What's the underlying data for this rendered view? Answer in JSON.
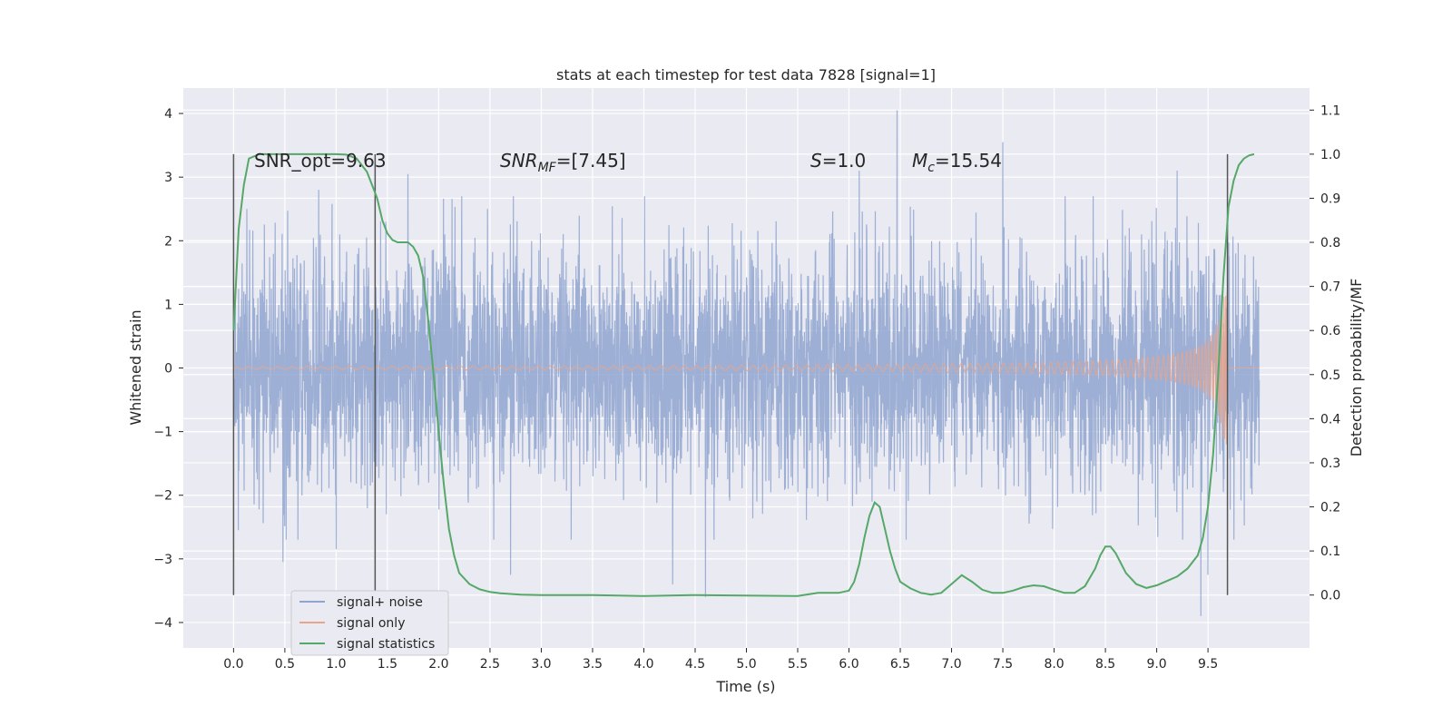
{
  "chart_data": {
    "type": "line",
    "title": "stats at each timestep for test data 7828 [signal=1]",
    "xlabel": "Time (s)",
    "ylabel": "Whitened strain",
    "y2label": "Detection probability/MF",
    "xlim": [
      -0.49,
      10.49
    ],
    "ylim": [
      -4.4,
      4.4
    ],
    "y2lim": [
      -0.12,
      1.15
    ],
    "xticks": [
      "0.0",
      "0.5",
      "1.0",
      "1.5",
      "2.0",
      "2.5",
      "3.0",
      "3.5",
      "4.0",
      "4.5",
      "5.0",
      "5.5",
      "6.0",
      "6.5",
      "7.0",
      "7.5",
      "8.0",
      "8.5",
      "9.0",
      "9.5"
    ],
    "yticks": [
      "4",
      "3",
      "2",
      "1",
      "0",
      "−1",
      "−2",
      "−3",
      "−4"
    ],
    "y2ticks": [
      "1.1",
      "1.0",
      "0.9",
      "0.8",
      "0.7",
      "0.6",
      "0.5",
      "0.4",
      "0.3",
      "0.2",
      "0.1",
      "0.0"
    ],
    "grid": true,
    "legend_position": "lower-left",
    "annotations": {
      "snr_opt": "SNR_opt=9.63",
      "snr_mf_main": "SNR",
      "snr_mf_sub": "MF",
      "snr_mf_value": "=[7.45]",
      "s_main": "S",
      "s_value": "=1.0",
      "mc_main": "M",
      "mc_sub": "c",
      "mc_value": "=15.54"
    },
    "vertical_lines_x": [
      0.0,
      1.38,
      9.69
    ],
    "series": [
      {
        "name": "signal+ noise",
        "color": "#8fa4cf",
        "x_range": [
          0.0,
          10.0
        ],
        "noise_std": 0.9,
        "spikes": [
          [
            0.13,
            2.5
          ],
          [
            0.48,
            -3.05
          ],
          [
            0.83,
            2.8
          ],
          [
            1.0,
            -2.85
          ],
          [
            1.7,
            3.05
          ],
          [
            2.7,
            -3.25
          ],
          [
            4.28,
            -3.4
          ],
          [
            4.6,
            -3.6
          ],
          [
            6.47,
            4.05
          ],
          [
            6.1,
            3.1
          ],
          [
            7.5,
            3.55
          ],
          [
            9.43,
            -3.9
          ],
          [
            9.5,
            -3.25
          ],
          [
            9.2,
            3.1
          ]
        ]
      },
      {
        "name": "signal only",
        "color": "#e8a58c",
        "chirp_end": 9.69,
        "peak_amplitude": 1.2
      },
      {
        "name": "signal statistics",
        "color": "#55a868",
        "axis": "right",
        "x": [
          0.0,
          0.05,
          0.1,
          0.15,
          0.25,
          0.4,
          0.6,
          0.8,
          1.0,
          1.1,
          1.2,
          1.3,
          1.35,
          1.4,
          1.45,
          1.5,
          1.55,
          1.6,
          1.65,
          1.7,
          1.75,
          1.8,
          1.85,
          1.9,
          1.95,
          2.0,
          2.05,
          2.1,
          2.15,
          2.2,
          2.3,
          2.4,
          2.5,
          2.6,
          2.8,
          3.0,
          3.5,
          4.0,
          4.5,
          5.0,
          5.5,
          5.7,
          5.9,
          6.0,
          6.05,
          6.1,
          6.15,
          6.2,
          6.25,
          6.3,
          6.35,
          6.4,
          6.45,
          6.5,
          6.6,
          6.7,
          6.8,
          6.9,
          7.0,
          7.1,
          7.2,
          7.3,
          7.4,
          7.5,
          7.6,
          7.7,
          7.8,
          7.9,
          8.0,
          8.1,
          8.2,
          8.3,
          8.4,
          8.45,
          8.5,
          8.55,
          8.6,
          8.7,
          8.8,
          8.9,
          9.0,
          9.1,
          9.2,
          9.3,
          9.4,
          9.45,
          9.5,
          9.55,
          9.6,
          9.65,
          9.7,
          9.75,
          9.8,
          9.85,
          9.9,
          9.95
        ],
        "y": [
          0.6,
          0.83,
          0.93,
          0.99,
          1.0,
          1.0,
          1.0,
          1.0,
          1.0,
          0.999,
          0.99,
          0.96,
          0.93,
          0.9,
          0.85,
          0.82,
          0.805,
          0.8,
          0.8,
          0.8,
          0.79,
          0.77,
          0.72,
          0.62,
          0.5,
          0.37,
          0.25,
          0.15,
          0.09,
          0.05,
          0.025,
          0.013,
          0.007,
          0.004,
          0.001,
          0.0,
          0.0,
          -0.002,
          0.0,
          -0.001,
          -0.002,
          0.005,
          0.005,
          0.01,
          0.03,
          0.07,
          0.13,
          0.18,
          0.21,
          0.2,
          0.15,
          0.1,
          0.06,
          0.03,
          0.015,
          0.005,
          0.001,
          0.005,
          0.025,
          0.045,
          0.03,
          0.012,
          0.005,
          0.005,
          0.01,
          0.018,
          0.022,
          0.02,
          0.012,
          0.005,
          0.005,
          0.02,
          0.06,
          0.09,
          0.11,
          0.11,
          0.095,
          0.05,
          0.025,
          0.016,
          0.022,
          0.032,
          0.042,
          0.06,
          0.09,
          0.13,
          0.2,
          0.32,
          0.5,
          0.72,
          0.88,
          0.94,
          0.975,
          0.99,
          0.997,
          1.0
        ]
      }
    ]
  }
}
